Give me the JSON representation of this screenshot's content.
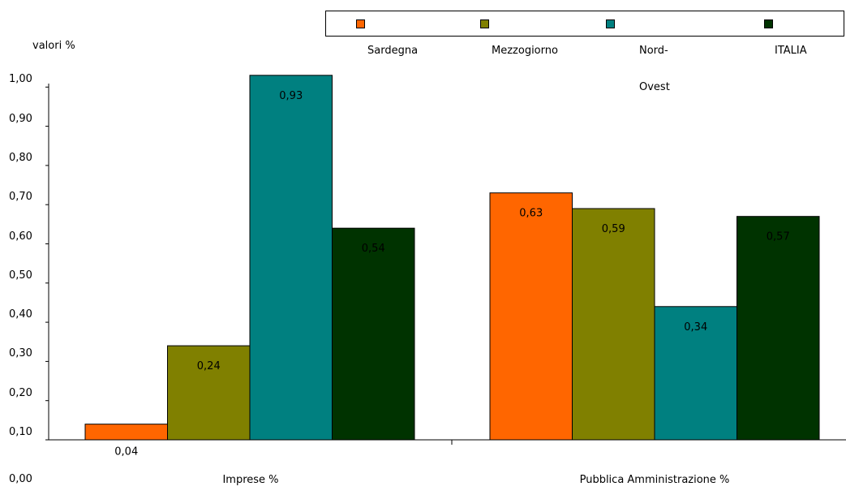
{
  "chart_data": {
    "type": "bar",
    "ylabel": "valori %",
    "categories": [
      "Imprese %",
      "Pubblica Amministrazione %"
    ],
    "series": [
      {
        "name": "Sardegna",
        "values": [
          0.04,
          0.63
        ],
        "color": "#ff6600"
      },
      {
        "name": "Mezzogiorno",
        "values": [
          0.24,
          0.59
        ],
        "color": "#808000"
      },
      {
        "name": "Nord-Ovest",
        "values": [
          0.93,
          0.34
        ],
        "color": "#008080"
      },
      {
        "name": "ITALIA",
        "values": [
          0.54,
          0.57
        ],
        "color": "#003300"
      }
    ],
    "data_labels": [
      [
        "0,04",
        "0,63"
      ],
      [
        "0,24",
        "0,59"
      ],
      [
        "0,93",
        "0,34"
      ],
      [
        "0,54",
        "0,57"
      ]
    ],
    "legend_labels": [
      [
        "Sardegna"
      ],
      [
        "Mezzogiorno"
      ],
      [
        "Nord-",
        "Ovest"
      ],
      [
        "ITALIA"
      ]
    ],
    "y_ticks": [
      "0,00",
      "0,10",
      "0,20",
      "0,30",
      "0,40",
      "0,50",
      "0,60",
      "0,70",
      "0,80",
      "0,90",
      "1,00"
    ],
    "legend_position": "top-right",
    "grid": false
  }
}
